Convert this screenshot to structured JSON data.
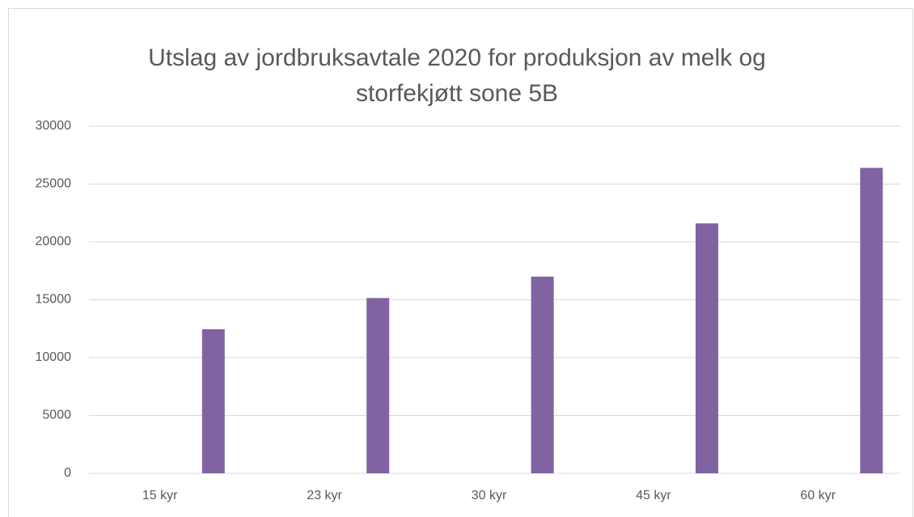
{
  "chart_data": {
    "type": "bar",
    "title": "Utslag av jordbruksavtale 2020 for produksjon av melk og storfekjøtt sone 5B",
    "categories": [
      "15 kyr",
      "23 kyr",
      "30 kyr",
      "45 kyr",
      "60 kyr"
    ],
    "values": [
      12450,
      15150,
      17000,
      21600,
      26400
    ],
    "color": "#8064a2",
    "ylim": [
      0,
      30000
    ],
    "yticks": [
      0,
      5000,
      10000,
      15000,
      20000,
      25000,
      30000
    ],
    "grid": true
  }
}
